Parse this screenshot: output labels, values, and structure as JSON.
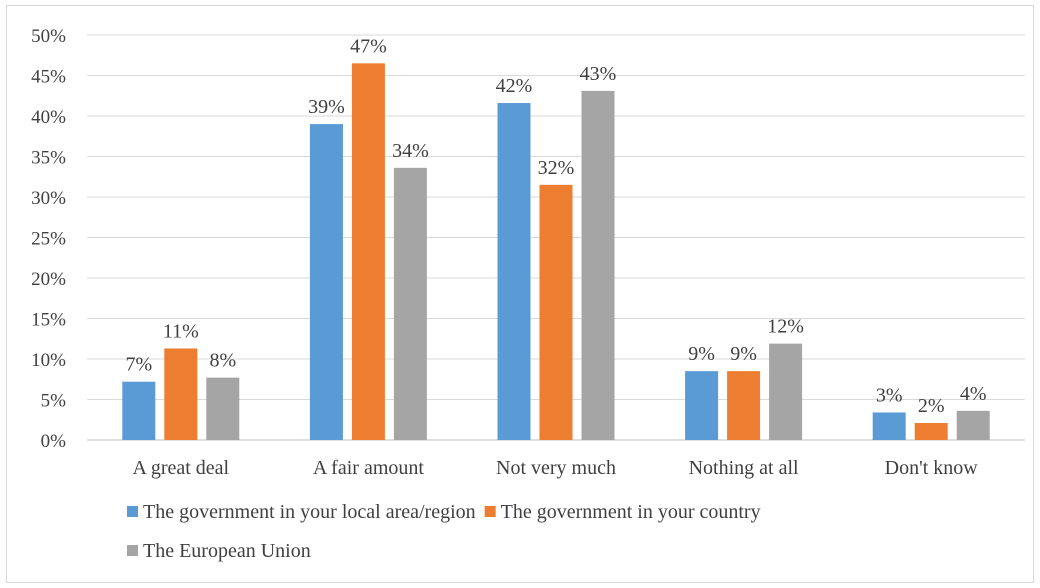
{
  "chart_data": {
    "type": "bar",
    "categories": [
      "A great deal",
      "A fair amount",
      "Not very much",
      "Nothing at all",
      "Don't know"
    ],
    "series": [
      {
        "name": "The government in your local area/region",
        "values": [
          7.2,
          39,
          41.6,
          8.5,
          3.4
        ],
        "labels": [
          "7%",
          "39%",
          "42%",
          "9%",
          "3%"
        ],
        "color": "#5b9bd5"
      },
      {
        "name": "The government in your country",
        "values": [
          11.3,
          46.5,
          31.5,
          8.5,
          2.1
        ],
        "labels": [
          "11%",
          "47%",
          "32%",
          "9%",
          "2%"
        ],
        "color": "#ed7d31"
      },
      {
        "name": "The European Union",
        "values": [
          7.7,
          33.6,
          43.1,
          11.9,
          3.6
        ],
        "labels": [
          "8%",
          "34%",
          "43%",
          "12%",
          "4%"
        ],
        "color": "#a5a5a5"
      }
    ],
    "ylim": [
      0,
      50
    ],
    "yticks": [
      "0%",
      "5%",
      "10%",
      "15%",
      "20%",
      "25%",
      "30%",
      "35%",
      "40%",
      "45%",
      "50%"
    ],
    "ytick_values": [
      0,
      5,
      10,
      15,
      20,
      25,
      30,
      35,
      40,
      45,
      50
    ],
    "grid": true,
    "legend_position": "bottom",
    "gridline_color": "#d9d9d9",
    "axis_color": "#bfbfbf"
  }
}
